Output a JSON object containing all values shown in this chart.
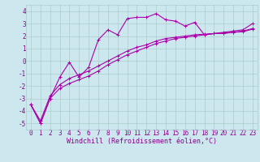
{
  "background_color": "#cce8ee",
  "grid_color": "#aacccc",
  "line_color": "#aa00aa",
  "xlabel": "Windchill (Refroidissement éolien,°C)",
  "xlim": [
    -0.5,
    23.5
  ],
  "ylim": [
    -5.5,
    4.5
  ],
  "yticks": [
    -5,
    -4,
    -3,
    -2,
    -1,
    0,
    1,
    2,
    3,
    4
  ],
  "xticks": [
    0,
    1,
    2,
    3,
    4,
    5,
    6,
    7,
    8,
    9,
    10,
    11,
    12,
    13,
    14,
    15,
    16,
    17,
    18,
    19,
    20,
    21,
    22,
    23
  ],
  "curve1_x": [
    0,
    1,
    2,
    3,
    4,
    5,
    6,
    7,
    8,
    9,
    10,
    11,
    12,
    13,
    14,
    15,
    16,
    17,
    18,
    19,
    20,
    21,
    22,
    23
  ],
  "curve1_y": [
    -3.5,
    -5.0,
    -3.0,
    -1.3,
    -0.1,
    -1.3,
    -0.5,
    1.7,
    2.5,
    2.1,
    3.4,
    3.5,
    3.5,
    3.8,
    3.3,
    3.2,
    2.8,
    3.1,
    2.1,
    2.2,
    2.3,
    2.4,
    2.5,
    3.0
  ],
  "curve2_x": [
    0,
    1,
    2,
    3,
    4,
    5,
    6,
    7,
    8,
    9,
    10,
    11,
    12,
    13,
    14,
    15,
    16,
    17,
    18,
    19,
    20,
    21,
    22,
    23
  ],
  "curve2_y": [
    -3.5,
    -5.0,
    -3.0,
    -2.2,
    -1.8,
    -1.5,
    -1.2,
    -0.8,
    -0.3,
    0.1,
    0.5,
    0.8,
    1.1,
    1.4,
    1.6,
    1.8,
    1.9,
    2.0,
    2.1,
    2.2,
    2.2,
    2.3,
    2.4,
    2.6
  ],
  "curve3_x": [
    0,
    1,
    2,
    3,
    4,
    5,
    6,
    7,
    8,
    9,
    10,
    11,
    12,
    13,
    14,
    15,
    16,
    17,
    18,
    19,
    20,
    21,
    22,
    23
  ],
  "curve3_y": [
    -3.5,
    -4.8,
    -2.8,
    -1.9,
    -1.4,
    -1.1,
    -0.8,
    -0.4,
    0.0,
    0.4,
    0.8,
    1.1,
    1.3,
    1.6,
    1.8,
    1.9,
    2.0,
    2.1,
    2.15,
    2.2,
    2.25,
    2.3,
    2.35,
    2.55
  ],
  "marker": "+",
  "markersize": 3,
  "linewidth": 0.8,
  "xlabel_fontsize": 6,
  "tick_fontsize": 5.5,
  "tick_color": "#880088"
}
